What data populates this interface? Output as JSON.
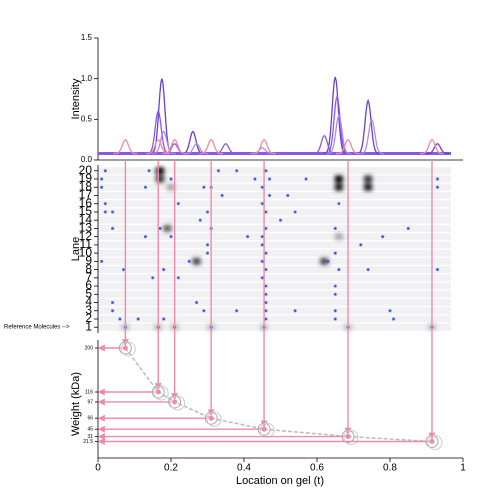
{
  "chart_data": [
    {
      "type": "peaks",
      "ylabel": "Intensity",
      "xlim": [
        0,
        1
      ],
      "ylim": [
        0,
        1.5
      ],
      "yticks": [
        {
          "value": 0,
          "label": "0.0"
        },
        0.5,
        {
          "value": 1,
          "label": "1.0"
        },
        1.5
      ],
      "baseline": 0.08,
      "baseline_color": "#8a5ae6",
      "series": [
        {
          "color": "#6a3fd6",
          "t": [
            0.175,
            0.26,
            0.65,
            0.74,
            0.93
          ],
          "intensity": [
            1.0,
            0.35,
            1.02,
            0.73,
            0.2
          ]
        },
        {
          "color": "#8a5ae6",
          "t": [
            0.165,
            0.21,
            0.35,
            0.62,
            0.655
          ],
          "intensity": [
            0.6,
            0.2,
            0.2,
            0.3,
            0.78
          ]
        },
        {
          "color": "#b08af0",
          "t": [
            0.18,
            0.27,
            0.45,
            0.66,
            0.75
          ],
          "intensity": [
            0.35,
            0.2,
            0.15,
            0.55,
            0.5
          ]
        },
        {
          "color": "#f08aa8",
          "t": [
            0.075,
            0.165,
            0.21,
            0.31,
            0.455,
            0.685,
            0.915
          ],
          "intensity": [
            0.25,
            0.25,
            0.25,
            0.25,
            0.25,
            0.25,
            0.25
          ]
        }
      ]
    },
    {
      "type": "lanes",
      "ylabel": "Lane",
      "reference_label": "Reference Molecules -->",
      "ylim": [
        0.3,
        20.7
      ],
      "yticks": [
        1,
        2,
        3,
        4,
        5,
        6,
        7,
        8,
        9,
        10,
        11,
        12,
        13,
        14,
        15,
        16,
        17,
        18,
        19,
        20
      ],
      "spot_color": "#000000",
      "star_color": "#3b5bdb",
      "spots": {
        "lane": [
          20,
          19,
          19,
          19,
          18,
          18,
          18,
          13,
          9,
          9,
          12,
          1,
          1,
          1,
          1,
          1,
          1,
          1
        ],
        "t": [
          0.17,
          0.17,
          0.66,
          0.74,
          0.66,
          0.74,
          0.2,
          0.19,
          0.27,
          0.62,
          0.66,
          0.075,
          0.165,
          0.21,
          0.31,
          0.455,
          0.685,
          0.915
        ],
        "intensity": [
          1.0,
          0.8,
          1.0,
          0.8,
          0.9,
          0.9,
          0.3,
          0.6,
          0.7,
          0.7,
          0.3,
          0.2,
          0.2,
          0.2,
          0.2,
          0.2,
          0.2,
          0.2
        ]
      },
      "stars": {
        "lane": [
          20,
          20,
          20,
          20,
          20,
          19,
          19,
          19,
          19,
          19,
          19,
          18,
          18,
          18,
          18,
          18,
          18,
          17,
          17,
          17,
          16,
          16,
          16,
          16,
          15,
          15,
          15,
          15,
          15,
          14,
          14,
          13,
          13,
          13,
          13,
          13,
          13,
          12,
          12,
          12,
          12,
          12,
          11,
          11,
          11,
          10,
          10,
          10,
          9,
          9,
          9,
          9,
          8,
          8,
          8,
          8,
          8,
          8,
          7,
          7,
          7,
          6,
          6,
          5,
          5,
          4,
          4,
          4,
          3,
          3,
          3,
          3,
          3,
          3,
          3,
          2,
          2,
          2,
          2,
          2,
          2,
          1,
          1,
          1,
          1,
          1,
          1,
          1
        ],
        "t": [
          0.02,
          0.14,
          0.33,
          0.38,
          0.46,
          0.01,
          0.2,
          0.43,
          0.47,
          0.57,
          0.93,
          0.01,
          0.13,
          0.29,
          0.31,
          0.45,
          0.93,
          0.34,
          0.47,
          0.52,
          0.02,
          0.22,
          0.45,
          0.66,
          0.02,
          0.04,
          0.3,
          0.46,
          0.54,
          0.28,
          0.5,
          0.04,
          0.17,
          0.31,
          0.46,
          0.65,
          0.85,
          0.13,
          0.2,
          0.41,
          0.45,
          0.78,
          0.3,
          0.45,
          0.72,
          0.3,
          0.46,
          0.65,
          0.01,
          0.25,
          0.45,
          0.63,
          0.07,
          0.18,
          0.46,
          0.66,
          0.74,
          0.93,
          0.15,
          0.22,
          0.45,
          0.46,
          0.65,
          0.46,
          0.65,
          0.04,
          0.27,
          0.46,
          0.04,
          0.29,
          0.38,
          0.46,
          0.54,
          0.65,
          0.8,
          0.06,
          0.11,
          0.18,
          0.46,
          0.65,
          0.81,
          0.075,
          0.165,
          0.21,
          0.31,
          0.455,
          0.685,
          0.915
        ]
      }
    },
    {
      "type": "scatter",
      "ylabel": "Weight (kDa)",
      "xlabel": "Location on gel (t)",
      "xlim": [
        0,
        1
      ],
      "xticks": [
        0,
        0.2,
        0.4,
        0.6,
        0.8,
        1
      ],
      "ylim": [
        -10,
        200
      ],
      "yticks": [
        200,
        116,
        97,
        66,
        45,
        31,
        21.5
      ],
      "color": "#f08aa8",
      "x": [
        0.075,
        0.165,
        0.21,
        0.31,
        0.455,
        0.685,
        0.915
      ],
      "values": [
        200,
        116,
        97,
        66,
        45,
        31,
        21.5
      ]
    }
  ]
}
